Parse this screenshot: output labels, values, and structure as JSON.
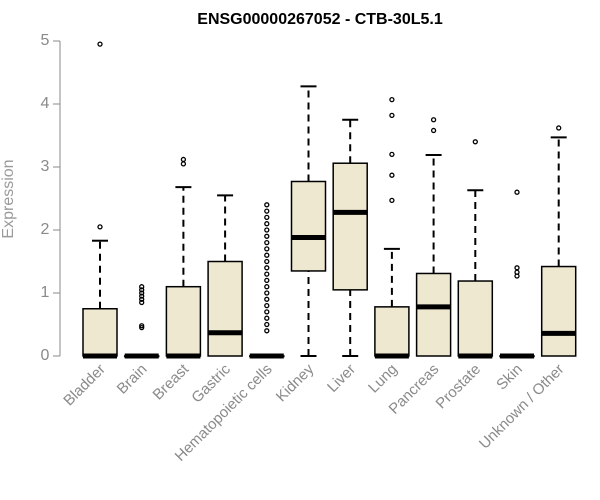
{
  "chart_data": {
    "type": "boxplot",
    "title": "ENSG00000267052 - CTB-30L5.1",
    "xlabel": "",
    "ylabel": "Expression",
    "ylim": [
      0,
      5
    ],
    "yticks": [
      "0",
      "1",
      "2",
      "3",
      "4",
      "5"
    ],
    "colors": {
      "box_fill": "#efe8d1",
      "stroke": "#000000",
      "axis": "#8a8a8a"
    },
    "categories": [
      "Bladder",
      "Brain",
      "Breast",
      "Gastric",
      "Hematopoietic cells",
      "Kidney",
      "Liver",
      "Lung",
      "Pancreas",
      "Prostate",
      "Skin",
      "Unknown / Other"
    ],
    "boxes": [
      {
        "category": "Bladder",
        "min": 0,
        "q1": 0,
        "median": 0,
        "q3": 0.75,
        "max": 1.83,
        "outliers": [
          2.05,
          4.95
        ]
      },
      {
        "category": "Brain",
        "min": 0,
        "q1": 0,
        "median": 0,
        "q3": 0,
        "max": 0,
        "outliers": [
          0.45,
          0.48,
          0.85,
          0.9,
          0.95,
          1.0,
          1.05,
          1.1
        ]
      },
      {
        "category": "Breast",
        "min": 0,
        "q1": 0,
        "median": 0,
        "q3": 1.1,
        "max": 2.68,
        "outliers": [
          3.05,
          3.12
        ]
      },
      {
        "category": "Gastric",
        "min": 0,
        "q1": 0,
        "median": 0.37,
        "q3": 1.5,
        "max": 2.55,
        "outliers": []
      },
      {
        "category": "Hematopoietic cells",
        "min": 0,
        "q1": 0,
        "median": 0,
        "q3": 0,
        "max": 0,
        "outliers": [
          0.4,
          0.5,
          0.6,
          0.7,
          0.8,
          0.9,
          1.0,
          1.1,
          1.2,
          1.3,
          1.4,
          1.5,
          1.6,
          1.7,
          1.8,
          1.9,
          2.0,
          2.1,
          2.2,
          2.3,
          2.4
        ]
      },
      {
        "category": "Kidney",
        "min": 0,
        "q1": 1.35,
        "median": 1.88,
        "q3": 2.77,
        "max": 4.28,
        "outliers": []
      },
      {
        "category": "Liver",
        "min": 0,
        "q1": 1.05,
        "median": 2.28,
        "q3": 3.06,
        "max": 3.75,
        "outliers": []
      },
      {
        "category": "Lung",
        "min": 0,
        "q1": 0,
        "median": 0,
        "q3": 0.78,
        "max": 1.7,
        "outliers": [
          2.47,
          2.87,
          3.2,
          3.82,
          4.07
        ]
      },
      {
        "category": "Pancreas",
        "min": 0,
        "q1": 0,
        "median": 0.78,
        "q3": 1.31,
        "max": 3.19,
        "outliers": [
          3.58,
          3.75
        ]
      },
      {
        "category": "Prostate",
        "min": 0,
        "q1": 0,
        "median": 0,
        "q3": 1.19,
        "max": 2.63,
        "outliers": [
          3.4
        ]
      },
      {
        "category": "Skin",
        "min": 0,
        "q1": 0,
        "median": 0,
        "q3": 0,
        "max": 0,
        "outliers": [
          1.27,
          1.33,
          1.4,
          2.6
        ]
      },
      {
        "category": "Unknown / Other",
        "min": 0,
        "q1": 0,
        "median": 0.36,
        "q3": 1.42,
        "max": 3.47,
        "outliers": [
          3.62
        ]
      }
    ]
  }
}
